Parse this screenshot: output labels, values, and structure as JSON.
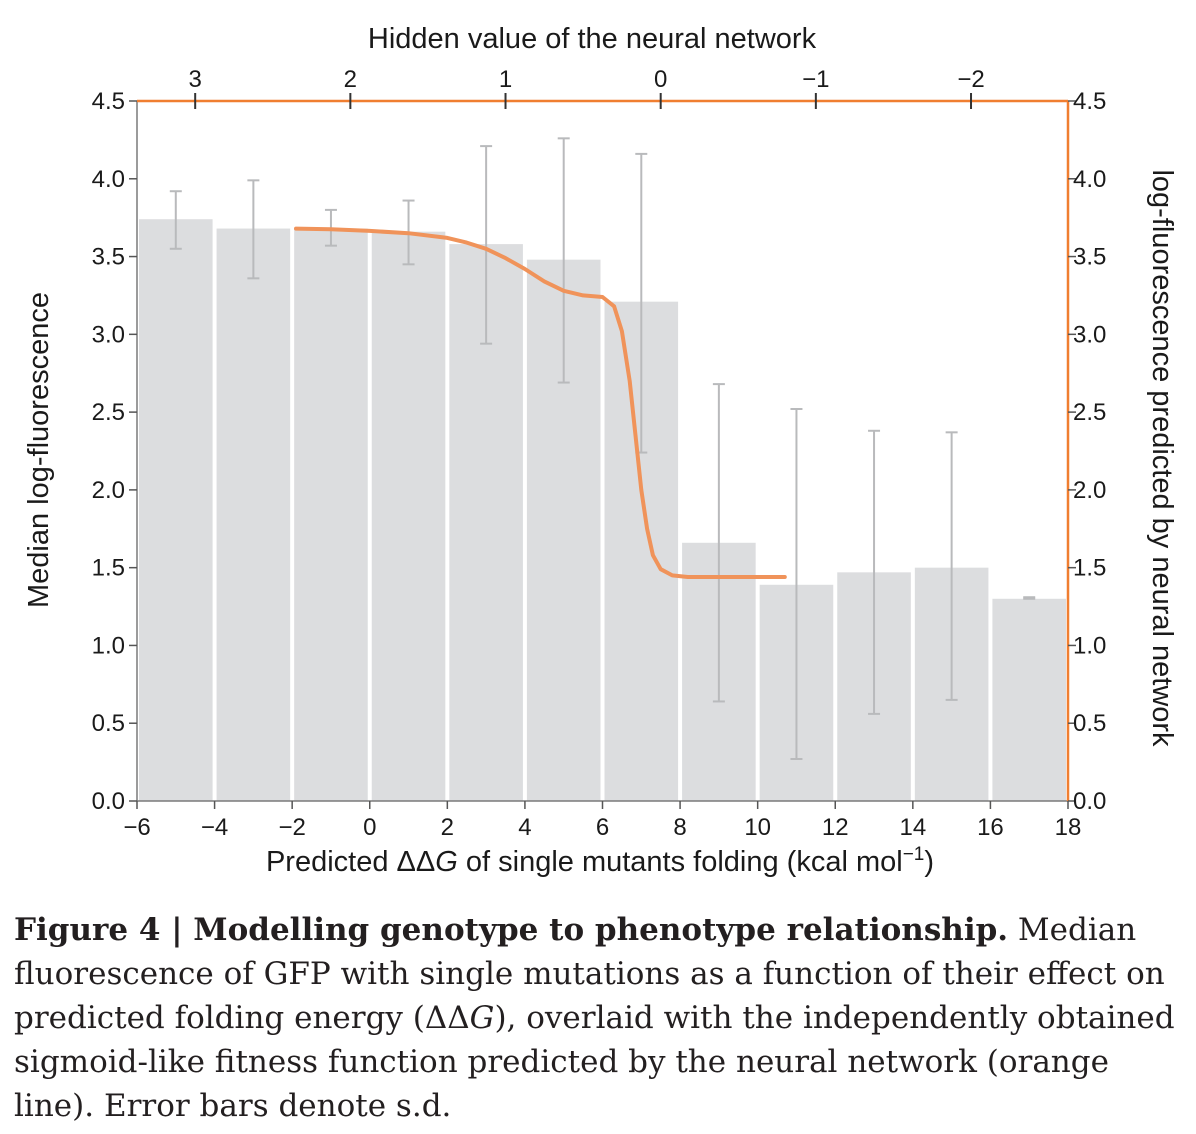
{
  "chart_data": {
    "type": "bar",
    "title": "",
    "xlabel": "Predicted ΔΔG of single mutants folding (kcal mol⁻¹)",
    "xlabel_parts": {
      "pre": "Predicted ΔΔ",
      "italic": "G",
      "post": " of single mutants folding (kcal mol",
      "sup": "−1",
      "close": ")"
    },
    "ylabel": "Median log-fluorescence",
    "y2label": "log-fluorescence predicted by neural network",
    "x2label": "Hidden value of the neural network",
    "xlim": [
      -6,
      18
    ],
    "ylim": [
      0,
      4.5
    ],
    "xticks": [
      -6,
      -4,
      -2,
      0,
      2,
      4,
      6,
      8,
      10,
      12,
      14,
      16,
      18
    ],
    "xtick_labels": [
      "−6",
      "−4",
      "−2",
      "0",
      "2",
      "4",
      "6",
      "8",
      "10",
      "12",
      "14",
      "16",
      "18"
    ],
    "yticks": [
      0,
      0.5,
      1,
      1.5,
      2,
      2.5,
      3,
      3.5,
      4,
      4.5
    ],
    "ytick_labels": [
      "0.0",
      "0.5",
      "1.0",
      "1.5",
      "2.0",
      "2.5",
      "3.0",
      "3.5",
      "4.0",
      "4.5"
    ],
    "x2ticks_at_x": [
      -4.5,
      -0.5,
      3.5,
      7.5,
      11.5,
      15.5
    ],
    "x2tick_labels": [
      "3",
      "2",
      "1",
      "0",
      "−1",
      "−2"
    ],
    "bin_width": 2,
    "bars": {
      "centers": [
        -5,
        -3,
        -1,
        1,
        3,
        5,
        7,
        9,
        11,
        13,
        15,
        17
      ],
      "values": [
        3.74,
        3.68,
        3.68,
        3.66,
        3.58,
        3.48,
        3.21,
        1.66,
        1.39,
        1.47,
        1.5,
        1.3
      ],
      "sd_low": [
        3.55,
        3.36,
        3.57,
        3.45,
        2.94,
        2.69,
        2.24,
        0.64,
        0.27,
        0.56,
        0.65,
        1.3
      ],
      "sd_high": [
        3.92,
        3.99,
        3.8,
        3.86,
        4.21,
        4.26,
        4.16,
        2.68,
        2.52,
        2.38,
        2.37,
        1.31
      ]
    },
    "nn_fit_line": {
      "name": "Neural network fitness function",
      "x": [
        -1.9,
        -1.0,
        0.0,
        1.0,
        2.0,
        2.5,
        3.0,
        3.5,
        4.0,
        4.5,
        5.0,
        5.5,
        6.0,
        6.3,
        6.5,
        6.7,
        6.85,
        7.0,
        7.15,
        7.3,
        7.5,
        7.8,
        8.2,
        9.0,
        10.0,
        10.7
      ],
      "y": [
        3.68,
        3.675,
        3.665,
        3.65,
        3.62,
        3.59,
        3.55,
        3.49,
        3.42,
        3.34,
        3.28,
        3.25,
        3.24,
        3.18,
        3.02,
        2.7,
        2.35,
        2.0,
        1.75,
        1.58,
        1.49,
        1.45,
        1.44,
        1.44,
        1.44,
        1.44
      ]
    },
    "colors": {
      "bar": "#dcdddf",
      "error_bar": "#b9babc",
      "line": "#f0935a",
      "axis_accent": "#f07e30",
      "text": "#1a1a1a"
    }
  },
  "caption": {
    "figure_label": "Figure 4 | Modelling genotype to phenotype relationship.",
    "body_pre": " Median fluorescence of GFP with single mutations as a function of their effect on predicted folding energy (ΔΔ",
    "body_italic": "G",
    "body_post": "), overlaid with the independently obtained sigmoid-like fitness function predicted by the neural network (orange line). Error bars denote s.d."
  }
}
